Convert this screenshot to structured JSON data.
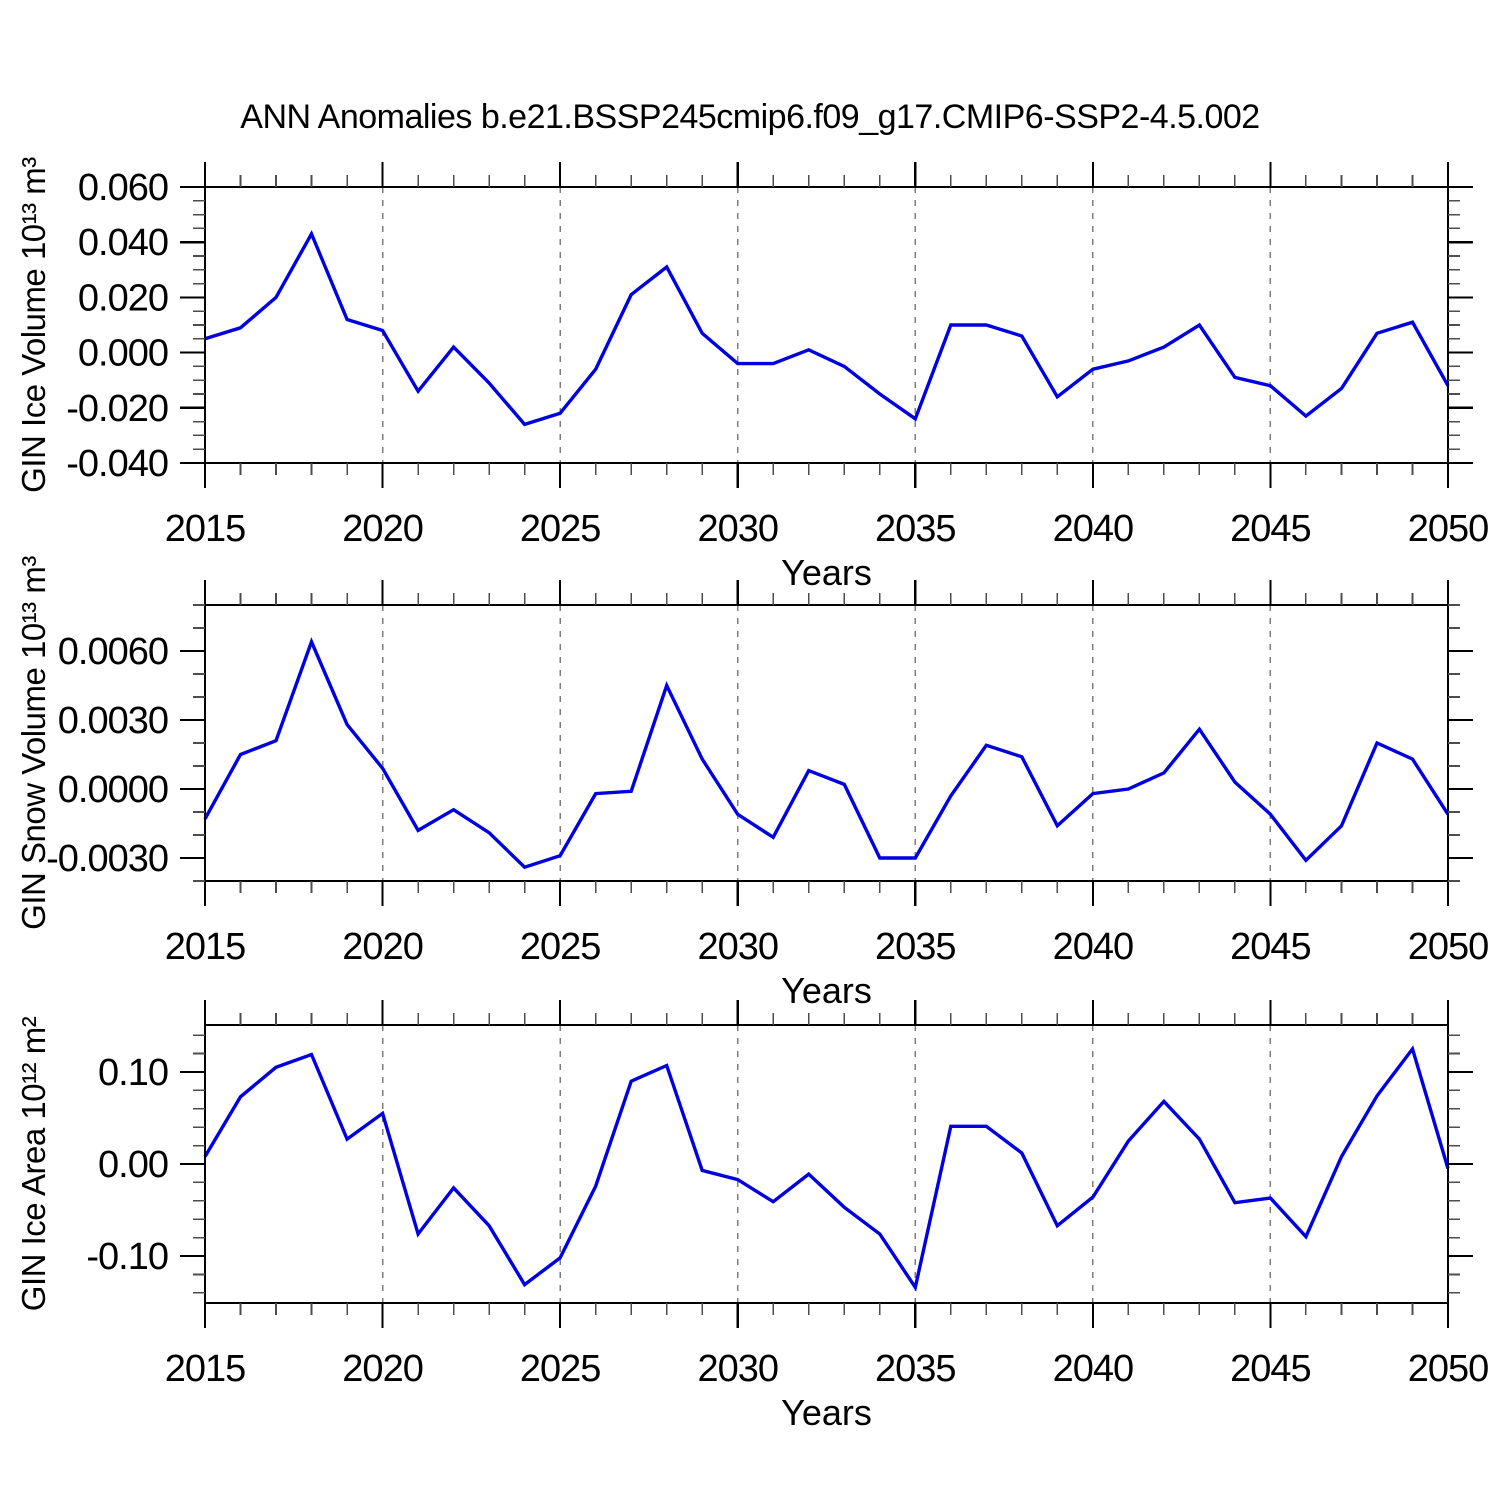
{
  "title": "ANN Anomalies b.e21.BSSP245cmip6.f09_g17.CMIP6-SSP2-4.5.002",
  "x_axis": {
    "label": "Years",
    "range": [
      2015,
      2050
    ],
    "major_ticks": [
      2015,
      2020,
      2025,
      2030,
      2035,
      2040,
      2045,
      2050
    ],
    "tick_labels": [
      "2015",
      "2020",
      "2025",
      "2030",
      "2035",
      "2040",
      "2045",
      "2050"
    ],
    "minor_step": 1,
    "grid_years": [
      2020,
      2025,
      2030,
      2035,
      2040,
      2045
    ]
  },
  "line_color": "#0000e0",
  "chart_data": [
    {
      "type": "line",
      "ylabel": "GIN Ice Volume 10¹³ m³",
      "xlabel": "Years",
      "ylim": [
        -0.04,
        0.06
      ],
      "ytick_values": [
        0.06,
        0.04,
        0.02,
        0.0,
        -0.02,
        -0.04
      ],
      "ytick_labels": [
        "0.060",
        "0.040",
        "0.020",
        "0.000",
        "-0.020",
        "-0.040"
      ],
      "y_minor_step": 0.005,
      "grid": true,
      "x": [
        2015,
        2016,
        2017,
        2018,
        2019,
        2020,
        2021,
        2022,
        2023,
        2024,
        2025,
        2026,
        2027,
        2028,
        2029,
        2030,
        2031,
        2032,
        2033,
        2034,
        2035,
        2036,
        2037,
        2038,
        2039,
        2040,
        2041,
        2042,
        2043,
        2044,
        2045,
        2046,
        2047,
        2048,
        2049,
        2050
      ],
      "values": [
        0.005,
        0.009,
        0.02,
        0.043,
        0.012,
        0.008,
        -0.014,
        0.002,
        -0.011,
        -0.026,
        -0.022,
        -0.006,
        0.021,
        0.031,
        0.007,
        -0.004,
        -0.004,
        0.001,
        -0.005,
        -0.015,
        -0.024,
        0.01,
        0.01,
        0.006,
        -0.016,
        -0.006,
        -0.003,
        0.002,
        0.01,
        -0.009,
        -0.012,
        -0.023,
        -0.013,
        0.007,
        0.011,
        -0.012
      ]
    },
    {
      "type": "line",
      "ylabel": "GIN Snow Volume 10¹³ m³",
      "xlabel": "Years",
      "ylim": [
        -0.004,
        0.008
      ],
      "ytick_values": [
        0.006,
        0.003,
        0.0,
        -0.003
      ],
      "ytick_labels": [
        "0.0060",
        "0.0030",
        "0.0000",
        "-0.0030"
      ],
      "y_minor_step": 0.001,
      "grid": true,
      "x": [
        2015,
        2016,
        2017,
        2018,
        2019,
        2020,
        2021,
        2022,
        2023,
        2024,
        2025,
        2026,
        2027,
        2028,
        2029,
        2030,
        2031,
        2032,
        2033,
        2034,
        2035,
        2036,
        2037,
        2038,
        2039,
        2040,
        2041,
        2042,
        2043,
        2044,
        2045,
        2046,
        2047,
        2048,
        2049,
        2050
      ],
      "values": [
        -0.0013,
        0.0015,
        0.0021,
        0.0064,
        0.0028,
        0.0009,
        -0.0018,
        -0.0009,
        -0.0019,
        -0.0034,
        -0.0029,
        -0.0002,
        -0.0001,
        0.0045,
        0.0013,
        -0.0011,
        -0.0021,
        0.0008,
        0.0002,
        -0.003,
        -0.003,
        -0.0003,
        0.0019,
        0.0014,
        -0.0016,
        -0.0002,
        0.0,
        0.0007,
        0.0026,
        0.0003,
        -0.0011,
        -0.0031,
        -0.0016,
        0.002,
        0.0013,
        -0.0011
      ]
    },
    {
      "type": "line",
      "ylabel": "GIN Ice Area 10¹² m²",
      "xlabel": "Years",
      "ylim": [
        -0.151,
        0.151
      ],
      "ytick_values": [
        0.1,
        0.0,
        -0.1
      ],
      "ytick_labels": [
        "0.10",
        "0.00",
        "-0.10"
      ],
      "y_minor_step": 0.02,
      "grid": true,
      "x": [
        2015,
        2016,
        2017,
        2018,
        2019,
        2020,
        2021,
        2022,
        2023,
        2024,
        2025,
        2026,
        2027,
        2028,
        2029,
        2030,
        2031,
        2032,
        2033,
        2034,
        2035,
        2036,
        2037,
        2038,
        2039,
        2040,
        2041,
        2042,
        2043,
        2044,
        2045,
        2046,
        2047,
        2048,
        2049,
        2050
      ],
      "values": [
        0.008,
        0.073,
        0.105,
        0.119,
        0.027,
        0.055,
        -0.076,
        -0.026,
        -0.067,
        -0.131,
        -0.102,
        -0.024,
        0.09,
        0.107,
        -0.007,
        -0.017,
        -0.041,
        -0.011,
        -0.047,
        -0.076,
        -0.134,
        0.041,
        0.041,
        0.012,
        -0.067,
        -0.036,
        0.025,
        0.068,
        0.027,
        -0.042,
        -0.037,
        -0.079,
        0.008,
        0.074,
        0.125,
        -0.005
      ]
    }
  ]
}
